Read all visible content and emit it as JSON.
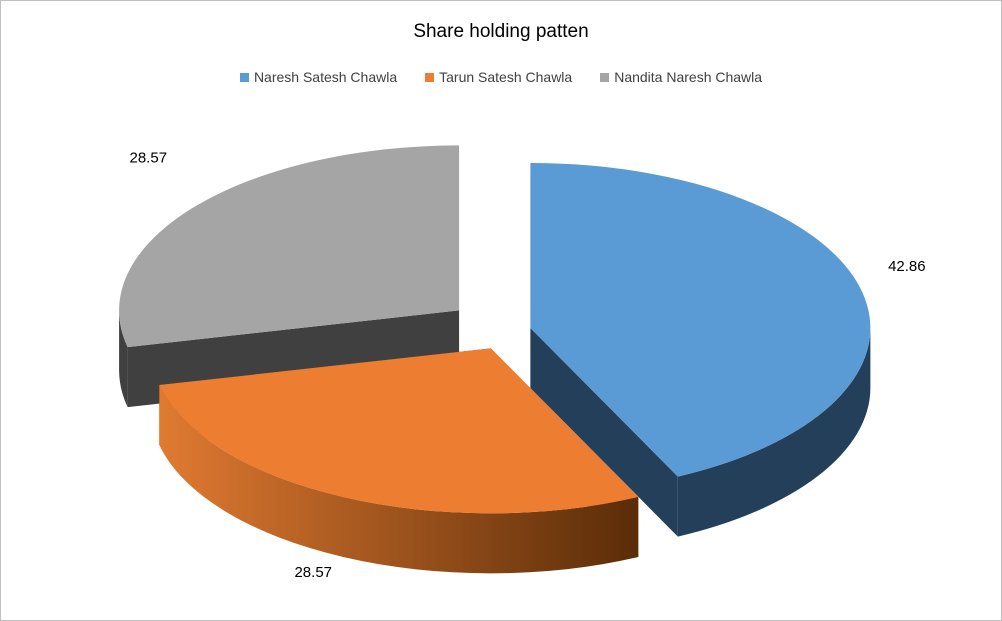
{
  "chart_data": {
    "type": "pie",
    "title": "Share holding patten",
    "legend_position": "top",
    "series": [
      {
        "name": "Naresh Satesh Chawla",
        "value": 42.86,
        "color": "#5b9bd5",
        "label": "42.86"
      },
      {
        "name": "Tarun Satesh Chawla",
        "value": 28.57,
        "color": "#ed7d31",
        "label": "28.57"
      },
      {
        "name": "Nandita Naresh Chawla",
        "value": 28.57,
        "color": "#a5a5a5",
        "label": "28.57"
      }
    ]
  }
}
